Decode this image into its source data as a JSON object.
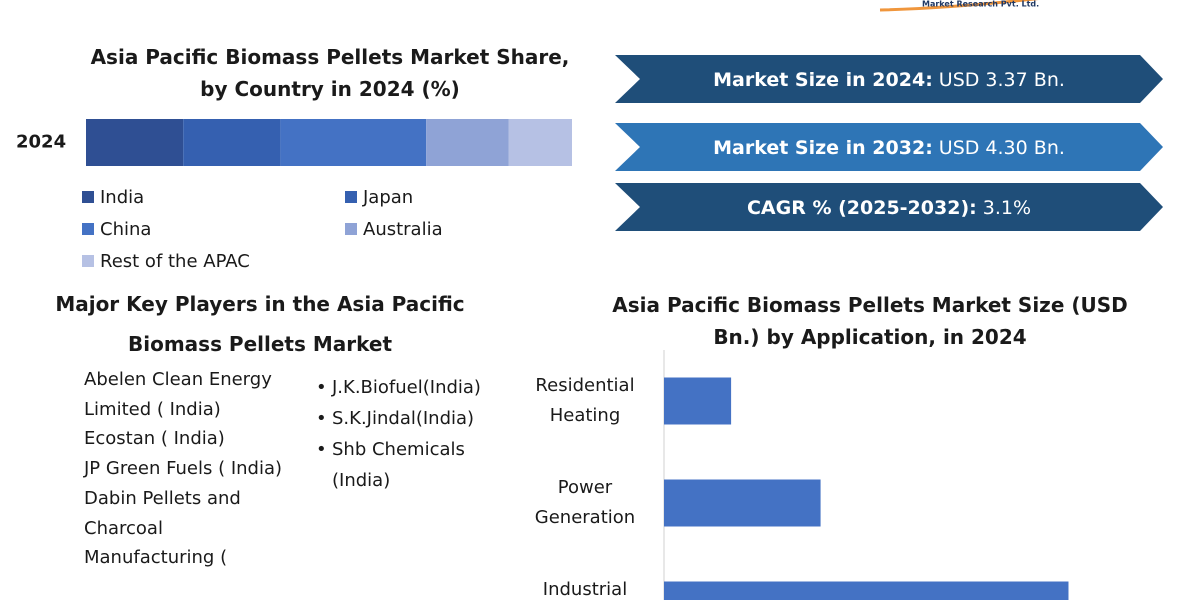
{
  "logo": "Market Research Pvt. Ltd.",
  "chart_data": [
    {
      "type": "stacked_bar",
      "title": "Asia Pacific Biomass Pellets Market Share, by Country in 2024 (%)",
      "categories": [
        "2024"
      ],
      "xlim": [
        0,
        100
      ],
      "series": [
        {
          "name": "India",
          "color": "#2f4f93",
          "values": [
            20
          ]
        },
        {
          "name": "Japan",
          "color": "#3560b0",
          "values": [
            20
          ]
        },
        {
          "name": "China",
          "color": "#4472c4",
          "values": [
            30
          ]
        },
        {
          "name": "Australia",
          "color": "#8fa3d6",
          "values": [
            17
          ]
        },
        {
          "name": "Rest of the APAC",
          "color": "#b6c1e4",
          "values": [
            13
          ]
        }
      ]
    },
    {
      "type": "hbar",
      "title": "Asia Pacific Biomass Pellets Market Size (USD Bn.) by Application, in 2024",
      "categories": [
        "Residential Heating",
        "Power Generation",
        "Industrial"
      ],
      "values": [
        0.36,
        0.84,
        2.17
      ],
      "color": "#4472c4",
      "xlim": [
        0,
        2.5
      ]
    }
  ],
  "banners": [
    {
      "label": "Market Size in 2024:",
      "value": "USD 3.37 Bn.",
      "color": "#1f4e79"
    },
    {
      "label": "Market Size in 2032:",
      "value": "USD 4.30 Bn.",
      "color": "#2e75b6"
    },
    {
      "label": "CAGR % (2025-2032):",
      "value": "3.1%",
      "color": "#1f4e79"
    }
  ],
  "key_players": {
    "title": "Major Key Players in the Asia Pacific Biomass Pellets Market",
    "left": [
      "Abelen Clean Energy Limited ( India)",
      "Ecostan ( India)",
      "JP Green Fuels ( India)",
      "Dabin Pellets and Charcoal Manufacturing ("
    ],
    "right": [
      "J.K.Biofuel(India)",
      "S.K.Jindal(India)",
      "Shb Chemicals (India)"
    ]
  }
}
